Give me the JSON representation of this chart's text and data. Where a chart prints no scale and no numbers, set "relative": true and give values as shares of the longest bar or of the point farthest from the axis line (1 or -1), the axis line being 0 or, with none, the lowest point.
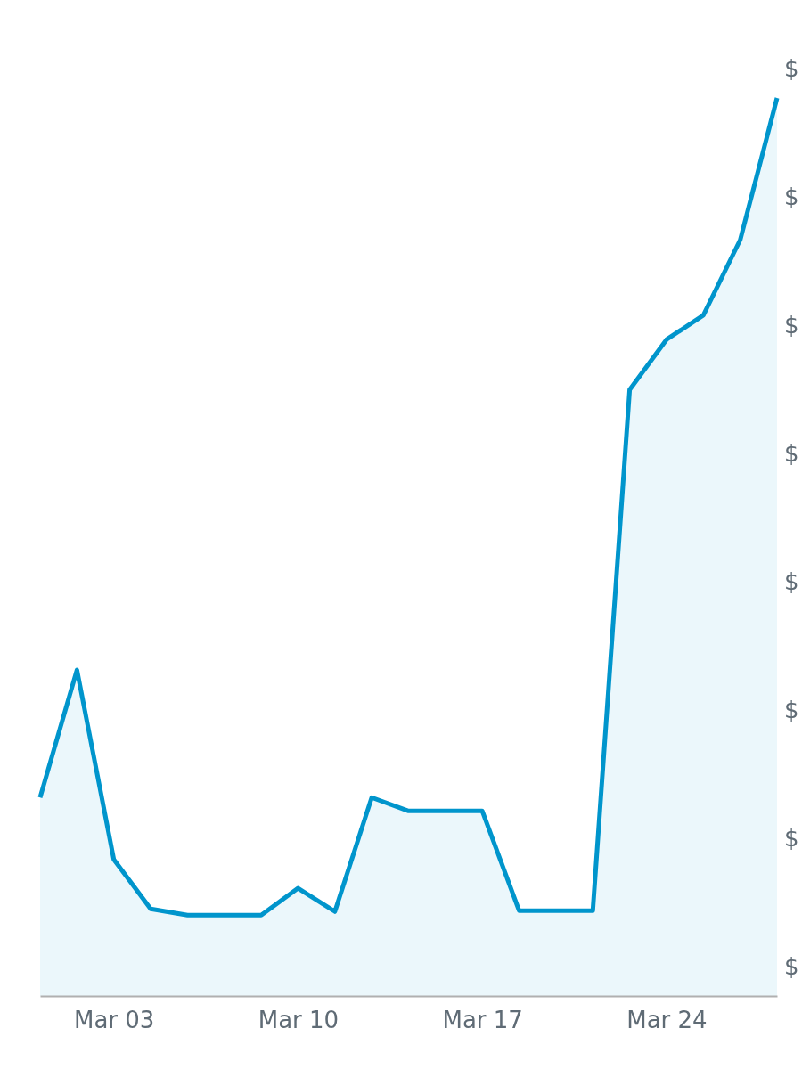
{
  "chart_data": {
    "type": "area",
    "relative": true,
    "categories": [
      null,
      null,
      "Mar 03",
      null,
      null,
      null,
      null,
      "Mar 10",
      null,
      null,
      null,
      null,
      "Mar 17",
      null,
      null,
      null,
      null,
      "Mar 24",
      null,
      null,
      null
    ],
    "series": [
      {
        "color": "#0095cc",
        "values": [
          0.221,
          0.363,
          0.152,
          0.097,
          0.09,
          0.09,
          0.09,
          0.12,
          0.094,
          0.221,
          0.206,
          0.206,
          0.206,
          0.095,
          0.095,
          0.095,
          0.675,
          0.731,
          0.758,
          0.842,
          1
        ]
      }
    ],
    "annotations": [
      "$",
      "$",
      "$",
      "$",
      "$",
      "$",
      "$",
      "$"
    ]
  }
}
